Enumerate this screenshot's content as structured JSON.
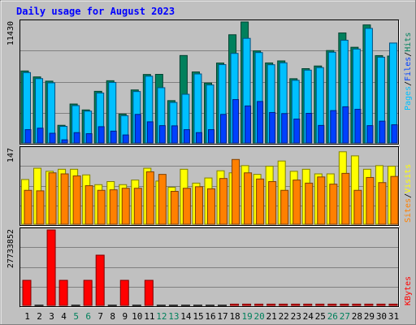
{
  "title": "Daily usage for August 2023",
  "colors": {
    "background": "#c0c0c0",
    "title": "#0000ff",
    "hits": "#00805c",
    "files": "#00c0ff",
    "pages": "#0040ff",
    "visits": "#ffff00",
    "sites": "#ff8000",
    "kbytes": "#ff0000",
    "weekday_label": "#000000",
    "weekend_label": "#00805c"
  },
  "axis_max_labels": {
    "hits": "11430",
    "visits": "147",
    "kbytes": "27733852"
  },
  "legend": {
    "top": [
      "Pages",
      "/",
      "Files",
      "/",
      "Hits"
    ],
    "middle": [
      "Sites",
      "/",
      "Visits"
    ],
    "bottom": [
      "KBytes"
    ]
  },
  "chart_data": [
    {
      "type": "bar",
      "title": "Daily usage for August 2023",
      "categories": [
        "1",
        "2",
        "3",
        "4",
        "5",
        "6",
        "7",
        "8",
        "9",
        "10",
        "11",
        "12",
        "13",
        "14",
        "15",
        "16",
        "17",
        "18",
        "19",
        "20",
        "21",
        "22",
        "23",
        "24",
        "25",
        "26",
        "27",
        "28",
        "29",
        "30",
        "31"
      ],
      "weekend_days": [
        "5",
        "6",
        "12",
        "13",
        "19",
        "20",
        "26",
        "27"
      ],
      "ylim": [
        0,
        11430
      ],
      "series": [
        {
          "name": "Hits",
          "values": [
            6800,
            6240,
            5840,
            1670,
            3680,
            3120,
            4880,
            5880,
            2730,
            5010,
            6470,
            6480,
            4000,
            8260,
            6710,
            5660,
            7550,
            10220,
            11430,
            8700,
            7560,
            7750,
            6070,
            7020,
            7270,
            8730,
            10390,
            9040,
            11150,
            8250,
            8210
          ]
        },
        {
          "name": "Files",
          "values": [
            6650,
            6080,
            5680,
            1570,
            3530,
            3010,
            4720,
            5720,
            2580,
            4860,
            6310,
            5220,
            3830,
            4600,
            6520,
            5480,
            7400,
            8460,
            9880,
            8540,
            7390,
            7570,
            5920,
            6880,
            7120,
            8570,
            9700,
            8870,
            10820,
            8100,
            9440
          ]
        },
        {
          "name": "Pages",
          "values": [
            1260,
            1400,
            920,
            300,
            980,
            880,
            1540,
            1120,
            760,
            2700,
            2000,
            1640,
            1620,
            1260,
            980,
            1260,
            2700,
            4100,
            3500,
            3920,
            2880,
            2780,
            2260,
            2800,
            1660,
            3060,
            3420,
            3180,
            1640,
            2060,
            1720
          ]
        }
      ]
    },
    {
      "type": "bar",
      "ylim": [
        0,
        147
      ],
      "series": [
        {
          "name": "Visits",
          "values": [
            87,
            109,
            103,
            107,
            107,
            96,
            77,
            83,
            77,
            86,
            109,
            84,
            72,
            107,
            80,
            90,
            104,
            100,
            114,
            97,
            113,
            123,
            103,
            107,
            98,
            98,
            141,
            133,
            107,
            114,
            113
          ]
        },
        {
          "name": "Sites",
          "values": [
            66,
            65,
            100,
            98,
            94,
            75,
            66,
            67,
            70,
            70,
            102,
            97,
            64,
            70,
            73,
            69,
            89,
            126,
            100,
            88,
            83,
            66,
            86,
            80,
            92,
            78,
            99,
            66,
            91,
            81,
            93
          ]
        }
      ]
    },
    {
      "type": "bar",
      "ylim": [
        0,
        27733852
      ],
      "series": [
        {
          "name": "KBytes",
          "values": [
            9240000,
            0,
            27733852,
            9240000,
            0,
            9240000,
            18480000,
            0,
            9240000,
            0,
            9240000,
            0,
            0,
            0,
            0,
            0,
            0,
            500000,
            500000,
            500000,
            500000,
            500000,
            500000,
            500000,
            500000,
            500000,
            500000,
            500000,
            500000,
            500000,
            500000
          ]
        }
      ]
    }
  ]
}
